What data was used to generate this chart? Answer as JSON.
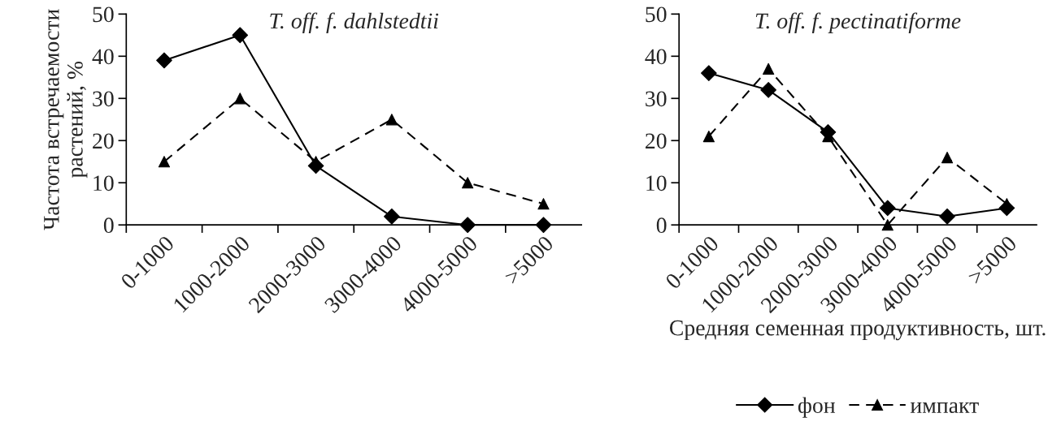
{
  "chart_data": [
    {
      "type": "line",
      "title": "T. off. f. dahlstedtii",
      "ylabel": "Частота встречаемости растений, %",
      "categories": [
        "0-1000",
        "1000-2000",
        "2000-3000",
        "3000-4000",
        "4000-5000",
        ">5000"
      ],
      "ylim": [
        0,
        50
      ],
      "yticks": [
        0,
        10,
        20,
        30,
        40,
        50
      ],
      "grid": false,
      "series": [
        {
          "color": "#000000",
          "marker": "diamond",
          "line_style": "solid",
          "values": [
            39,
            45,
            14,
            2,
            0,
            0
          ]
        },
        {
          "color": "#000000",
          "marker": "triangle",
          "line_style": "dashed",
          "values": [
            15,
            30,
            15,
            25,
            10,
            5
          ]
        }
      ]
    },
    {
      "type": "line",
      "title": "T. off. f. pectinatiforme",
      "xlabel": "Средняя семенная продуктивность, шт.",
      "categories": [
        "0-1000",
        "1000-2000",
        "2000-3000",
        "3000-4000",
        "4000-5000",
        ">5000"
      ],
      "ylim": [
        0,
        50
      ],
      "yticks": [
        0,
        10,
        20,
        30,
        40,
        50
      ],
      "grid": false,
      "legend": "bottom",
      "series": [
        {
          "name": "фон",
          "color": "#000000",
          "marker": "diamond",
          "line_style": "solid",
          "values": [
            36,
            32,
            22,
            4,
            2,
            4
          ]
        },
        {
          "name": "импакт",
          "color": "#000000",
          "marker": "triangle",
          "line_style": "dashed",
          "values": [
            21,
            37,
            21,
            0,
            16,
            5
          ]
        }
      ]
    }
  ]
}
